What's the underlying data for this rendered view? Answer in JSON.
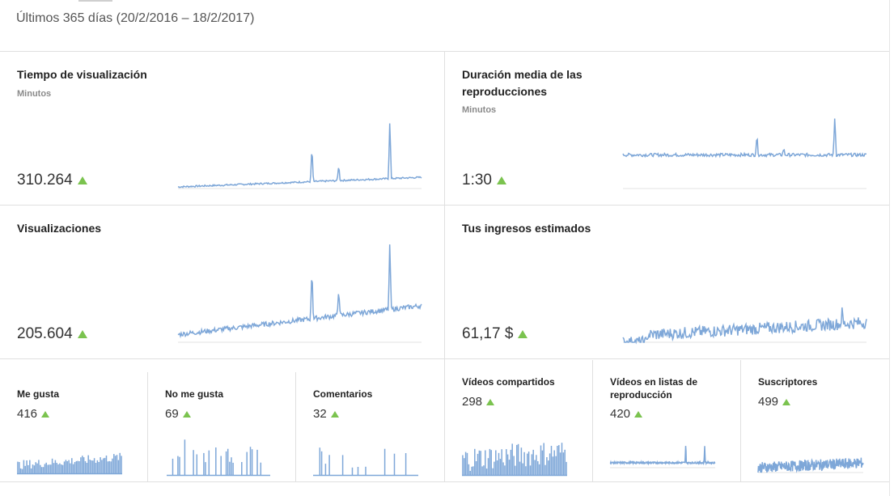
{
  "header": {
    "date_range": "Últimos 365 días (20/2/2016 – 18/2/2017)"
  },
  "watch_time": {
    "title": "Tiempo de visualización",
    "unit": "Minutos",
    "value": "310.264"
  },
  "avg_duration": {
    "title_line1": "Duración media de las",
    "title_line2": "reproducciones",
    "unit": "Minutos",
    "value": "1:30"
  },
  "views": {
    "title": "Visualizaciones",
    "value": "205.604"
  },
  "revenue": {
    "title": "Tus ingresos estimados",
    "value": "61,17 $"
  },
  "likes": {
    "title": "Me gusta",
    "value": "416"
  },
  "dislikes": {
    "title": "No me gusta",
    "value": "69"
  },
  "comments": {
    "title": "Comentarios",
    "value": "32"
  },
  "shares": {
    "title": "Vídeos compartidos",
    "value": "298"
  },
  "playlists": {
    "title_line1": "Vídeos en listas de",
    "title_line2": "reproducción",
    "value": "420"
  },
  "subscribers": {
    "title": "Suscriptores",
    "value": "499"
  },
  "colors": {
    "sparkline": "#7ea7d8",
    "trend_up": "#7bc34f",
    "divider": "#e0e0e0"
  },
  "trend_direction": "up"
}
